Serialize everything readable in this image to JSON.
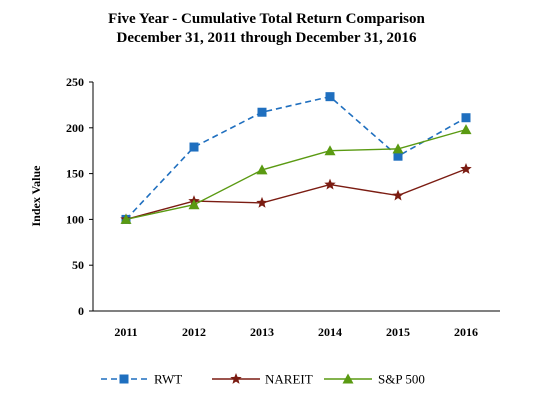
{
  "chart_data": {
    "type": "line",
    "title": "Five Year - Cumulative Total Return Comparison",
    "subtitle": "December 31, 2011 through December 31, 2016",
    "xlabel": "",
    "ylabel": "Index Value",
    "categories": [
      "2011",
      "2012",
      "2013",
      "2014",
      "2015",
      "2016"
    ],
    "ylim": [
      0,
      250
    ],
    "yticks": [
      "0",
      "50",
      "100",
      "150",
      "200",
      "250"
    ],
    "grid": false,
    "legend_position": "bottom",
    "series": [
      {
        "name": "RWT",
        "values": [
          100,
          179,
          217,
          234,
          169,
          211
        ],
        "color": "#1f6fbf",
        "marker": "square",
        "line_style": "dashed"
      },
      {
        "name": "NAREIT",
        "values": [
          100,
          120,
          118,
          138,
          126,
          155
        ],
        "color": "#7b1c12",
        "marker": "star",
        "line_style": "solid"
      },
      {
        "name": "S&P 500",
        "values": [
          100,
          116,
          154,
          175,
          177,
          198
        ],
        "color": "#5a9a12",
        "marker": "triangle",
        "line_style": "solid"
      }
    ]
  }
}
